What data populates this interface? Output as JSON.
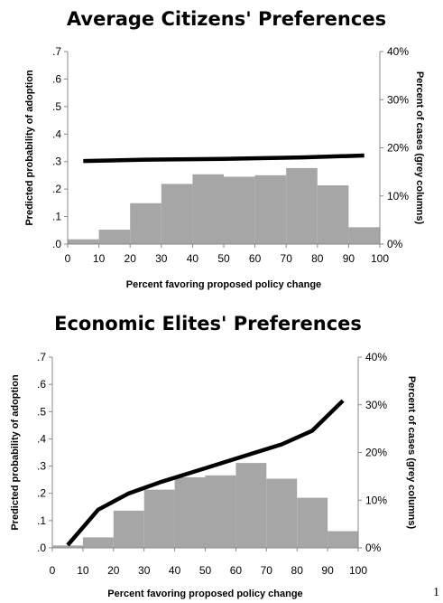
{
  "chart_data": [
    {
      "type": "bar+line",
      "title": "Average Citizens' Preferences",
      "xlabel": "Percent favoring proposed policy change",
      "ylabel": "Predicted probability of adoption",
      "y2label": "Percent of cases (grey columns)",
      "xlim": [
        0,
        100
      ],
      "ylim": [
        0,
        0.7
      ],
      "y2lim": [
        0,
        40
      ],
      "x_ticks": [
        "0",
        "10",
        "20",
        "30",
        "40",
        "50",
        "60",
        "70",
        "80",
        "90",
        "100"
      ],
      "y_ticks": [
        ".0",
        ".1",
        ".2",
        ".3",
        ".4",
        ".5",
        ".6",
        ".7"
      ],
      "y2_ticks": [
        "0%",
        "10%",
        "20%",
        "30%",
        "40%"
      ],
      "bars": {
        "bins": [
          [
            0,
            10
          ],
          [
            10,
            20
          ],
          [
            20,
            30
          ],
          [
            30,
            40
          ],
          [
            40,
            50
          ],
          [
            50,
            60
          ],
          [
            60,
            70
          ],
          [
            70,
            80
          ],
          [
            80,
            90
          ],
          [
            90,
            100
          ]
        ],
        "values": [
          1,
          3,
          8.5,
          12.5,
          14.5,
          14,
          14.3,
          15.8,
          12.2,
          3.5
        ]
      },
      "line": {
        "x": [
          5,
          25,
          50,
          75,
          95
        ],
        "y": [
          0.302,
          0.307,
          0.31,
          0.315,
          0.322
        ]
      }
    },
    {
      "type": "bar+line",
      "title": "Economic Elites' Preferences",
      "xlabel": "Percent favoring proposed policy change",
      "ylabel": "Predicted probability of adoption",
      "y2label": "Percent of cases (grey columns)",
      "xlim": [
        0,
        100
      ],
      "ylim": [
        0,
        0.7
      ],
      "y2lim": [
        0,
        40
      ],
      "x_ticks": [
        "0",
        "10",
        "20",
        "30",
        "40",
        "50",
        "60",
        "70",
        "80",
        "90",
        "100"
      ],
      "y_ticks": [
        ".0",
        ".1",
        ".2",
        ".3",
        ".4",
        ".5",
        ".6",
        ".7"
      ],
      "y2_ticks": [
        "0%",
        "10%",
        "20%",
        "30%",
        "40%"
      ],
      "bars": {
        "bins": [
          [
            0,
            10
          ],
          [
            10,
            20
          ],
          [
            20,
            30
          ],
          [
            30,
            40
          ],
          [
            40,
            50
          ],
          [
            50,
            60
          ],
          [
            60,
            70
          ],
          [
            70,
            80
          ],
          [
            80,
            90
          ],
          [
            90,
            100
          ]
        ],
        "values": [
          0.5,
          2.2,
          7.8,
          12.2,
          14.8,
          15.2,
          17.8,
          14.5,
          10.5,
          3.5
        ]
      },
      "line": {
        "x": [
          5,
          15,
          25,
          35,
          45,
          55,
          65,
          75,
          85,
          95
        ],
        "y": [
          0.01,
          0.14,
          0.2,
          0.24,
          0.275,
          0.31,
          0.345,
          0.38,
          0.43,
          0.54
        ]
      }
    }
  ],
  "corner_mark": "1",
  "colors": {
    "bar": "#a6a6a6",
    "line": "#000000",
    "axis": "#888888"
  }
}
